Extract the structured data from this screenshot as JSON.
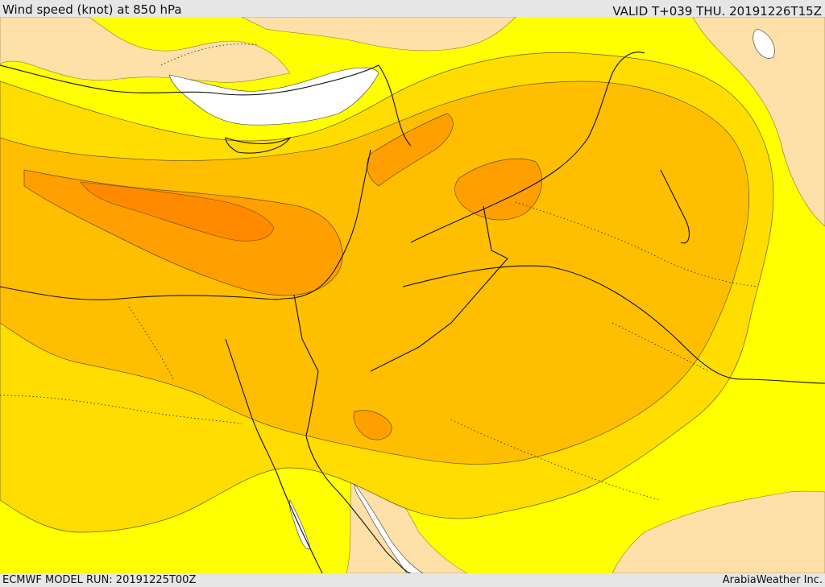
{
  "header": {
    "title": "Wind speed (knot) at 850 hPa",
    "valid": "VALID T+039 THU. 20191226T15Z"
  },
  "footer": {
    "model_run": "ECMWF MODEL RUN: 20191225T00Z",
    "credit": "ArabiaWeather Inc."
  },
  "map": {
    "region": "Eastern Mediterranean and Middle East",
    "colors": {
      "calm": "#ffffff",
      "light": "#ffe0a8",
      "yellow": "#ffff00",
      "gold": "#ffdd00",
      "amber": "#ffbf00",
      "orange": "#ff9f00",
      "deep": "#ff8a00"
    }
  }
}
